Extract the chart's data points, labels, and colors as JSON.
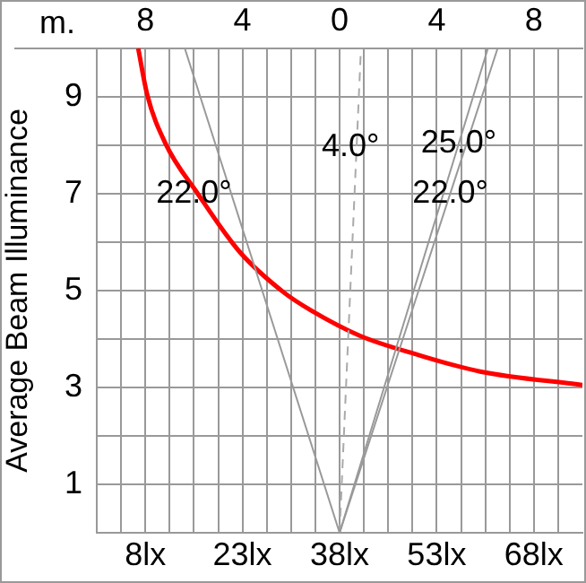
{
  "chart_data": {
    "type": "line",
    "ylabel": "Average Beam Illuminance",
    "x2label": "m.",
    "xlim": [
      0.5,
      75.5
    ],
    "xticks": [
      {
        "value": 4.25,
        "label": null
      },
      {
        "value": 8,
        "label": "8lx"
      },
      {
        "value": 11.75,
        "label": null
      },
      {
        "value": 15.5,
        "label": null
      },
      {
        "value": 19.25,
        "label": null
      },
      {
        "value": 23,
        "label": "23lx"
      },
      {
        "value": 26.75,
        "label": null
      },
      {
        "value": 30.5,
        "label": null
      },
      {
        "value": 34.25,
        "label": null
      },
      {
        "value": 38,
        "label": "38lx"
      },
      {
        "value": 41.75,
        "label": null
      },
      {
        "value": 45.5,
        "label": null
      },
      {
        "value": 49.25,
        "label": null
      },
      {
        "value": 53,
        "label": "53lx"
      },
      {
        "value": 56.75,
        "label": null
      },
      {
        "value": 60.5,
        "label": null
      },
      {
        "value": 64.25,
        "label": null
      },
      {
        "value": 68,
        "label": "68lx"
      },
      {
        "value": 71.75,
        "label": null
      }
    ],
    "x2lim": [
      -10,
      10
    ],
    "x2ticks": [
      {
        "value": -8,
        "label": "8"
      },
      {
        "value": -4,
        "label": "4"
      },
      0,
      4,
      8
    ],
    "ylim": [
      0,
      10
    ],
    "yticks": [
      {
        "value": 0,
        "label": null
      },
      1,
      {
        "value": 2,
        "label": null
      },
      3,
      {
        "value": 4,
        "label": null
      },
      5,
      {
        "value": 6,
        "label": null
      },
      7,
      {
        "value": 8,
        "label": null
      },
      9,
      {
        "value": 10,
        "label": null
      }
    ],
    "grid": true,
    "legend": false,
    "marker": "none",
    "series": [
      {
        "color": "#999999",
        "x": [
          38,
          14.1
        ],
        "values": [
          0,
          10
        ]
      },
      {
        "color": "#999999",
        "x": [
          38,
          62.4
        ],
        "values": [
          0,
          10
        ]
      },
      {
        "color": "#999999",
        "x": [
          38,
          60.9
        ],
        "values": [
          0,
          10
        ]
      },
      {
        "color": "#aaaaaa",
        "line_style": "dashed",
        "x": [
          38,
          41.3
        ],
        "values": [
          0,
          10
        ]
      },
      {
        "color": "#ff0000",
        "x": [
          6.9,
          8.3,
          11.1,
          16.1,
          22.5,
          29.4,
          33.6,
          41.1,
          50.2,
          59.7,
          75.5
        ],
        "values": [
          10,
          9.04,
          8.04,
          7.0,
          5.81,
          4.96,
          4.59,
          4.07,
          3.67,
          3.33,
          3.05
        ]
      }
    ],
    "annotations": [
      {
        "text": "22.0°",
        "x": 15.5,
        "y": 7
      },
      {
        "text": "4.0°",
        "x": 39.7,
        "y": 7.96
      },
      {
        "text": "25.0°",
        "x": 56.4,
        "y": 8.04
      },
      {
        "text": "22.0°",
        "x": 55.1,
        "y": 7
      }
    ]
  }
}
